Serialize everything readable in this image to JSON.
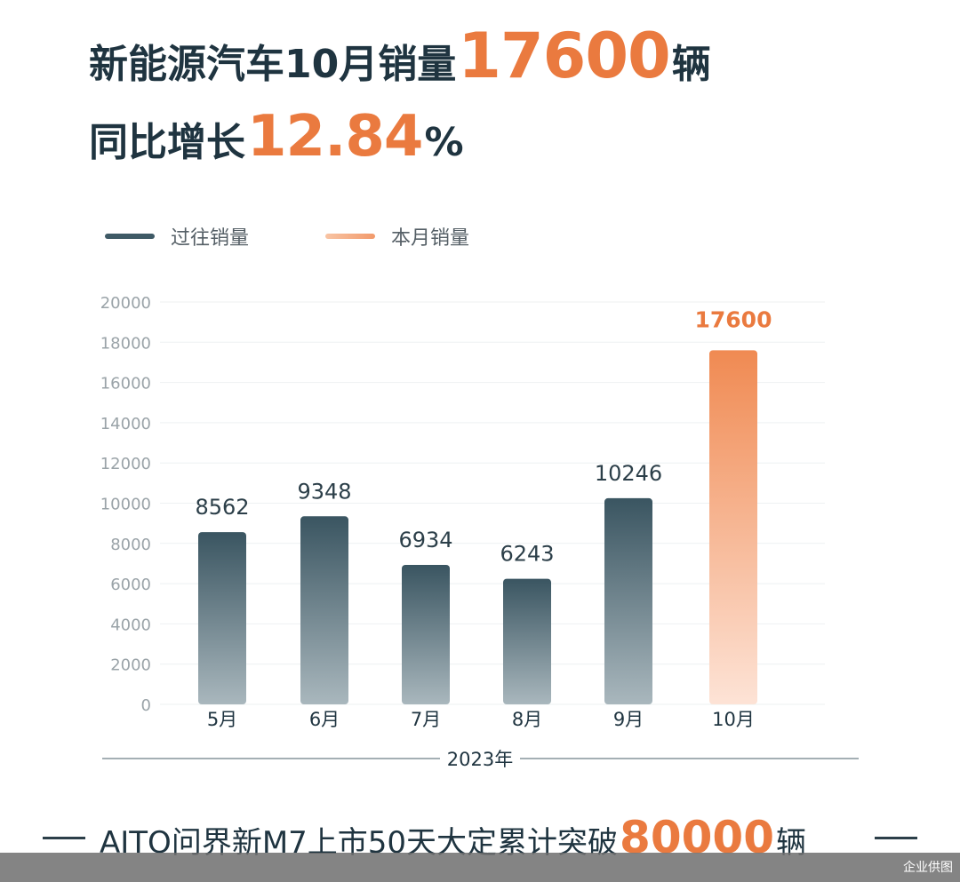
{
  "headline": {
    "line1_prefix": "新能源汽车10月销量",
    "line1_number": "17600",
    "line1_suffix": "辆",
    "line2_prefix": "同比增长",
    "line2_number": "12.84",
    "line2_suffix": "%"
  },
  "legend": {
    "past_label": "过往销量",
    "current_label": "本月销量"
  },
  "colors": {
    "past_bar": "#3f5a66",
    "current_bar": "#f08a52",
    "accent": "#ea7a3f",
    "text": "#1f3440"
  },
  "chart_data": {
    "type": "bar",
    "categories": [
      "5月",
      "6月",
      "7月",
      "8月",
      "9月",
      "10月"
    ],
    "series": [
      {
        "name": "过往销量",
        "values": [
          8562,
          9348,
          6934,
          6243,
          10246,
          null
        ]
      },
      {
        "name": "本月销量",
        "values": [
          null,
          null,
          null,
          null,
          null,
          17600
        ]
      }
    ],
    "data_labels": [
      "8562",
      "9348",
      "6934",
      "6243",
      "10246",
      "17600"
    ],
    "yticks": [
      0,
      2000,
      4000,
      6000,
      8000,
      10000,
      12000,
      14000,
      16000,
      18000,
      20000
    ],
    "ylim": [
      0,
      20000
    ],
    "xlabel": "2023年",
    "ylabel": "",
    "title": "",
    "grid": true,
    "legend_position": "top-left"
  },
  "footer": {
    "prefix": "AITO问界新M7上市50天大定累计突破",
    "number": "80000",
    "suffix": "辆"
  },
  "watermark": "企业供图"
}
